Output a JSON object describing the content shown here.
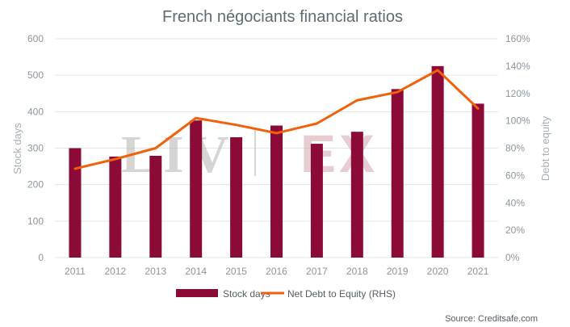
{
  "chart_data": {
    "type": "bar",
    "title": "French négociants financial ratios",
    "categories": [
      "2011",
      "2012",
      "2013",
      "2014",
      "2015",
      "2016",
      "2017",
      "2018",
      "2019",
      "2020",
      "2021"
    ],
    "series": [
      {
        "name": "Stock days",
        "type": "bar",
        "axis": "left",
        "color": "#8b0a38",
        "values": [
          300,
          277,
          279,
          376,
          330,
          362,
          312,
          345,
          462,
          525,
          422
        ]
      },
      {
        "name": "Net Debt to Equity (RHS)",
        "type": "line",
        "axis": "right",
        "color": "#f2600a",
        "values": [
          0.65,
          0.72,
          0.8,
          1.02,
          0.97,
          0.91,
          0.98,
          1.15,
          1.21,
          1.37,
          1.09
        ]
      }
    ],
    "ylabel": "Stock days",
    "ylabel_right": "Debt to equity",
    "ylim": [
      0,
      600
    ],
    "ylim_right": [
      0,
      1.6
    ],
    "yticks": [
      "0",
      "100",
      "200",
      "300",
      "400",
      "500",
      "600"
    ],
    "yticks_right": [
      "0%",
      "20%",
      "40%",
      "60%",
      "80%",
      "100%",
      "120%",
      "140%",
      "160%"
    ],
    "grid": true,
    "legend_position": "bottom",
    "legend": [
      "Stock days",
      "Net Debt to Equity (RHS)"
    ],
    "source": "Source: Creditsafe.com",
    "watermark": "LIV-EX"
  }
}
